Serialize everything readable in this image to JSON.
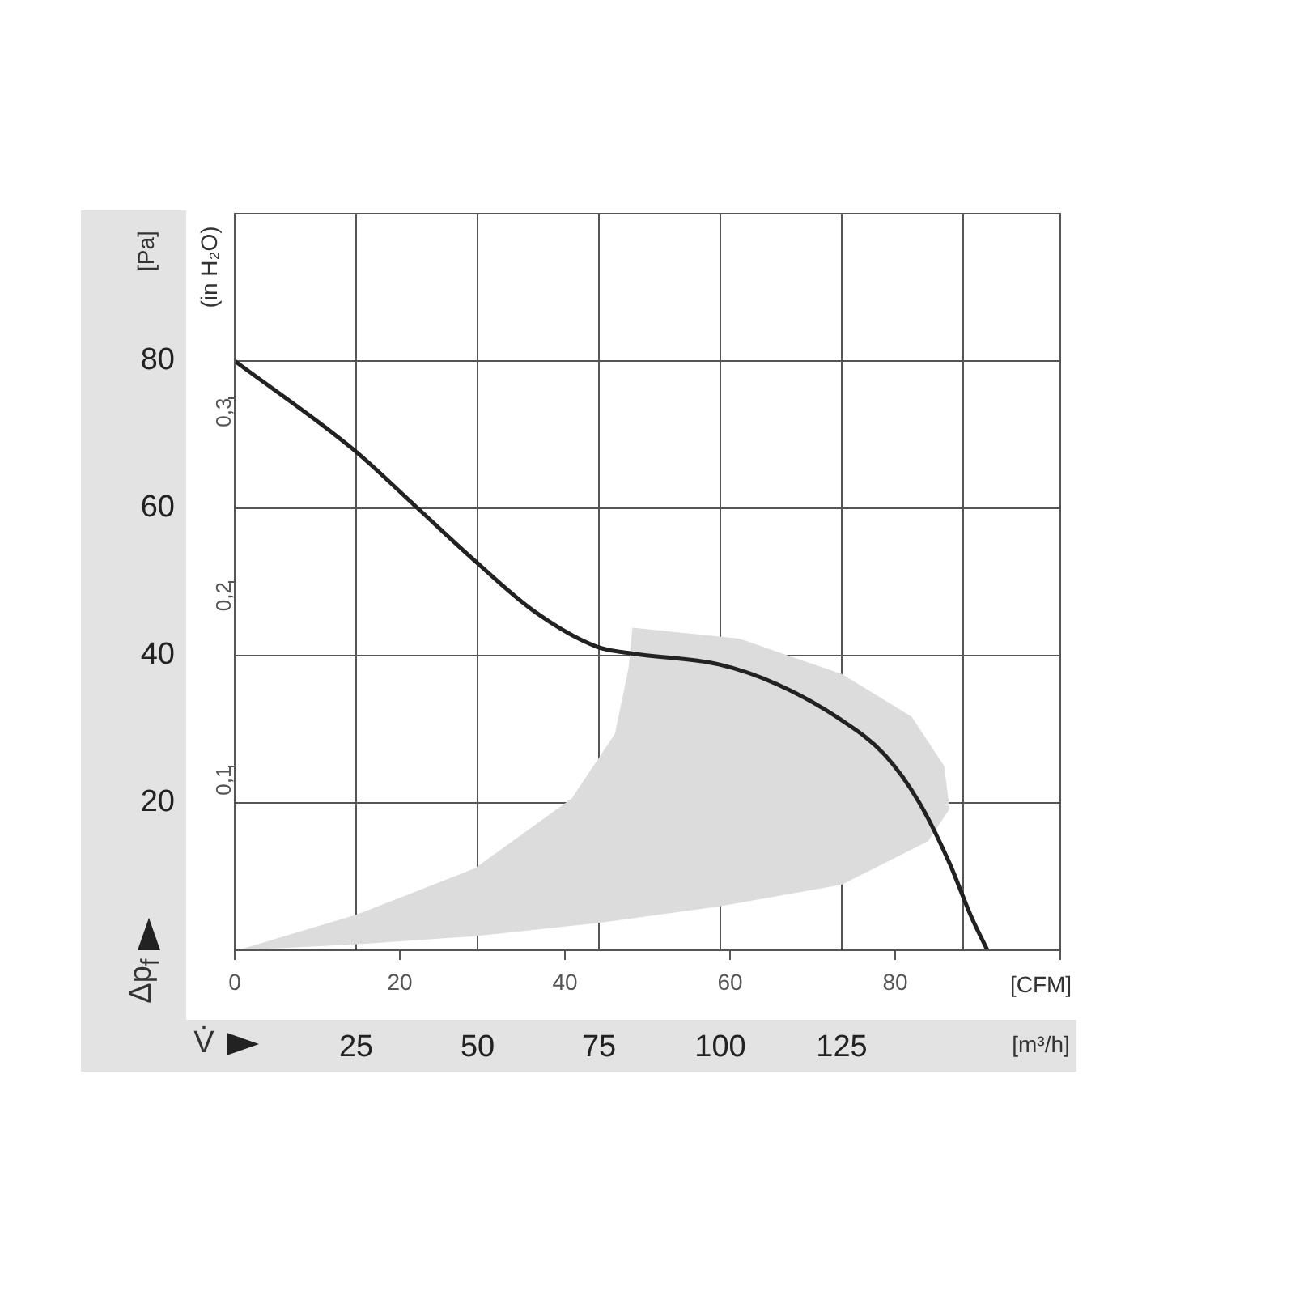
{
  "chart_data": {
    "type": "line",
    "xlabel": "V̇",
    "ylabel": "Δp$_{f}$",
    "x2label": "[CFM]",
    "y2label": "(in H₂O)",
    "annotations": [
      "[Pa]",
      "[m³/h]"
    ],
    "xlim": [
      0,
      170
    ],
    "xticks": [
      25,
      50,
      75,
      100,
      125,
      {
        "value": 150,
        "label": null
      }
    ],
    "x2lim": [
      0,
      100
    ],
    "x2ticks": [
      0,
      20,
      40,
      60,
      80,
      {
        "value": 100,
        "label": null
      }
    ],
    "ylim": [
      0,
      100
    ],
    "yticks": [
      20,
      40,
      60,
      80
    ],
    "y2lim": [
      0,
      0.4
    ],
    "y2ticks": [
      {
        "value": 0.1,
        "label": "0,1"
      },
      {
        "value": 0.2,
        "label": "0,2"
      },
      {
        "value": 0.3,
        "label": "0,3"
      }
    ],
    "grid": true,
    "legend": false,
    "marker": "none",
    "line_style": "solid",
    "series": [
      {
        "type": "area",
        "color": "#dcdcdc",
        "x": [
          0.6,
          25,
          49.4,
          75,
          99.4,
          125,
          142.8,
          147.2,
          146.1,
          139.4,
          125,
          103.9,
          81.9,
          81.1,
          78.3,
          69.4,
          49.4,
          25,
          0.6
        ],
        "values": [
          0,
          0.8,
          1.9,
          3.7,
          5.9,
          8.9,
          14.8,
          19.2,
          25,
          31.7,
          37.5,
          42.3,
          43.8,
          38.3,
          29.4,
          20.6,
          11.1,
          4.8,
          0
        ]
      },
      {
        "color": "#222222",
        "x": [
          0,
          24.4,
          37.2,
          49.4,
          61.7,
          74.6,
          81.7,
          99.7,
          111.7,
          124.8,
          133.9,
          141.1,
          147.2,
          151.7,
          155
        ],
        "values": [
          80,
          68,
          60.3,
          52.9,
          46,
          41.2,
          40.3,
          38.8,
          36.1,
          31.3,
          26.5,
          19.9,
          11.8,
          4.5,
          0
        ]
      }
    ]
  }
}
